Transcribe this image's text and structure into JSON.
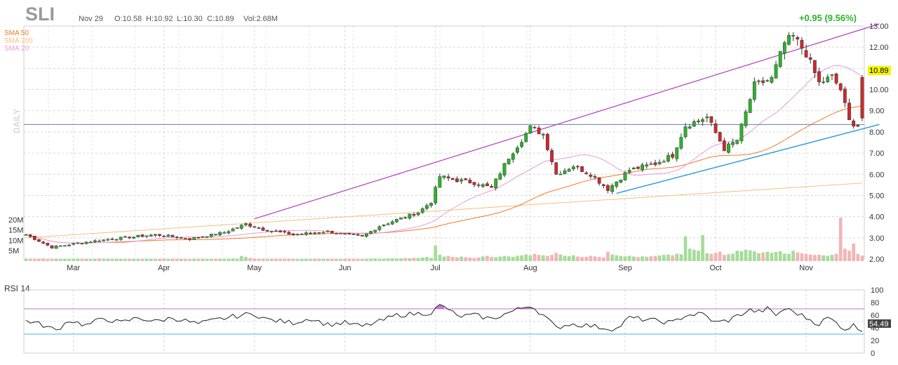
{
  "header": {
    "ticker": "SLI",
    "date": "Nov 29",
    "open": "O:10.58",
    "high": "H:10.92",
    "low": "L:10.30",
    "close": "C:10.89",
    "volume": "Vol:2.68M",
    "change": "+0.95 (9.56%)",
    "timeframe": "DAILY"
  },
  "legend": [
    {
      "label": "SMA 50",
      "color": "#f07a2a"
    },
    {
      "label": "SMA 200",
      "color": "#f5c07a"
    },
    {
      "label": "SMA 20",
      "color": "#e89ad6"
    }
  ],
  "colors": {
    "up": "#2bb32b",
    "down": "#d0282b",
    "vol_up": "#a6dc9a",
    "vol_down": "#f3b5b5",
    "price_tag": "#f5f500",
    "change": "#2bb32b",
    "channel": "#b03bbf",
    "support": "#2c9bd8",
    "horizontal": "#6a7bb8",
    "rsi_line": "#222222",
    "rsi_fill": "#c65ed3",
    "rsi_upper": "#c070c8",
    "rsi_lower": "#55b0d8"
  },
  "chart_data": [
    {
      "type": "candlestick",
      "title": "SLI",
      "x_axis_labels": [
        "Mar",
        "Apr",
        "May",
        "Jun",
        "Jul",
        "Aug",
        "Sep",
        "Oct",
        "Nov"
      ],
      "x_axis_label_index": [
        11,
        32,
        53,
        74,
        95,
        117,
        139,
        160,
        181
      ],
      "y_ticks": [
        2.0,
        3.0,
        4.0,
        5.0,
        6.0,
        7.0,
        8.0,
        9.0,
        10.0,
        11.0,
        12.0,
        13.0
      ],
      "y_tick_labels": [
        "2.00",
        "3.00",
        "4.00",
        "5.00",
        "6.00",
        "7.00",
        "8.00",
        "9.00",
        "10.00",
        "11.00",
        "12.00",
        "13.00"
      ],
      "ylim": [
        2.0,
        13.0
      ],
      "last_price_label": "10.89",
      "last_price": 10.89,
      "volume_ticks": [
        "20M",
        "15M",
        "10M",
        "5M"
      ],
      "volume_tick_values": [
        20,
        15,
        10,
        5
      ],
      "volume_max": 21,
      "price_anchors": [
        [
          0,
          3.15
        ],
        [
          6,
          2.55
        ],
        [
          12,
          2.75
        ],
        [
          20,
          2.95
        ],
        [
          30,
          3.15
        ],
        [
          38,
          2.95
        ],
        [
          46,
          3.25
        ],
        [
          51,
          3.65
        ],
        [
          55,
          3.4
        ],
        [
          62,
          3.15
        ],
        [
          70,
          3.3
        ],
        [
          74,
          3.15
        ],
        [
          78,
          3.05
        ],
        [
          82,
          3.55
        ],
        [
          86,
          3.85
        ],
        [
          91,
          4.2
        ],
        [
          94,
          4.7
        ],
        [
          96,
          5.9
        ],
        [
          99,
          5.75
        ],
        [
          104,
          5.6
        ],
        [
          108,
          5.35
        ],
        [
          112,
          6.8
        ],
        [
          117,
          8.2
        ],
        [
          120,
          7.9
        ],
        [
          123,
          6.0
        ],
        [
          127,
          6.4
        ],
        [
          131,
          6.0
        ],
        [
          135,
          5.3
        ],
        [
          140,
          6.2
        ],
        [
          146,
          6.5
        ],
        [
          150,
          6.9
        ],
        [
          153,
          8.3
        ],
        [
          158,
          8.7
        ],
        [
          162,
          7.2
        ],
        [
          165,
          7.6
        ],
        [
          169,
          10.2
        ],
        [
          173,
          10.5
        ],
        [
          176,
          12.2
        ],
        [
          178,
          12.5
        ],
        [
          181,
          11.7
        ],
        [
          184,
          10.3
        ],
        [
          187,
          10.6
        ],
        [
          189,
          10.0
        ],
        [
          191,
          8.5
        ],
        [
          193,
          8.3
        ],
        [
          195,
          9.0
        ],
        [
          197,
          10.8
        ],
        [
          198,
          10.89
        ]
      ],
      "volume_series": [
        1.2,
        1.0,
        0.9,
        1.1,
        1.3,
        0.8,
        1.0,
        1.2,
        0.9,
        1.1,
        1.0,
        0.9,
        1.2,
        1.0,
        1.1,
        0.8,
        1.0,
        1.3,
        0.9,
        1.1,
        1.0,
        1.2,
        0.9,
        0.8,
        1.0,
        1.1,
        1.0,
        0.9,
        1.2,
        1.0,
        0.8,
        1.1,
        1.0,
        0.9,
        1.2,
        1.1,
        1.0,
        0.9,
        0.8,
        1.1,
        1.0,
        1.2,
        0.9,
        1.0,
        1.1,
        1.0,
        0.9,
        1.2,
        1.3,
        1.1,
        2.5,
        2.0,
        1.5,
        1.2,
        1.0,
        1.1,
        0.9,
        1.0,
        1.2,
        1.0,
        0.9,
        1.1,
        1.0,
        0.8,
        1.0,
        1.1,
        0.9,
        1.0,
        1.2,
        1.0,
        0.9,
        1.1,
        1.0,
        0.8,
        1.1,
        1.2,
        1.0,
        1.1,
        0.9,
        1.0,
        1.2,
        1.3,
        1.1,
        1.2,
        1.3,
        1.4,
        1.2,
        1.3,
        1.5,
        1.4,
        1.6,
        1.5,
        1.8,
        2.0,
        1.6,
        7.5,
        3.0,
        2.2,
        2.5,
        2.0,
        1.8,
        2.2,
        1.9,
        1.7,
        1.5,
        1.8,
        2.3,
        2.6,
        2.0,
        1.9,
        2.2,
        2.5,
        2.3,
        2.1,
        2.6,
        2.8,
        3.2,
        2.8,
        3.5,
        3.0,
        2.8,
        2.5,
        3.0,
        4.0,
        3.2,
        2.6,
        2.4,
        2.8,
        2.2,
        2.0,
        2.1,
        2.6,
        2.3,
        2.0,
        1.8,
        4.5,
        3.2,
        2.8,
        2.5,
        2.3,
        2.6,
        2.2,
        2.0,
        2.3,
        2.1,
        2.4,
        2.5,
        2.7,
        3.0,
        3.2,
        2.8,
        3.5,
        3.3,
        12.0,
        6.0,
        5.5,
        5.0,
        12.5,
        3.8,
        3.5,
        4.0,
        4.5,
        3.0,
        3.3,
        3.6,
        5.0,
        4.8,
        5.5,
        5.2,
        4.7,
        3.8,
        4.2,
        4.5,
        4.0,
        4.4,
        4.8,
        3.6,
        3.5,
        5.0,
        4.2,
        3.8,
        3.5,
        3.2,
        3.0,
        3.1,
        2.8,
        2.6,
        3.0,
        3.5,
        21.0,
        6.0,
        5.0,
        8.5,
        3.5,
        2.68
      ],
      "channel_line": [
        [
          53,
          3.9
        ],
        [
          198,
          13.0
        ]
      ],
      "support_line": [
        [
          137,
          5.1
        ],
        [
          198,
          8.35
        ]
      ],
      "horizontal_line": 8.35
    },
    {
      "type": "line",
      "title": "RSI 14",
      "y_ticks": [
        0,
        20,
        40,
        60,
        80,
        100
      ],
      "y_tick_labels": [
        "0",
        "20",
        "40",
        "60",
        "80",
        "100"
      ],
      "ylim": [
        0,
        100
      ],
      "overbought": 70,
      "oversold": 30,
      "last_value": 54.49,
      "last_value_label": "54.49",
      "rsi_anchors": [
        [
          0,
          52
        ],
        [
          4,
          44
        ],
        [
          7,
          36
        ],
        [
          10,
          52
        ],
        [
          14,
          44
        ],
        [
          18,
          55
        ],
        [
          22,
          48
        ],
        [
          26,
          56
        ],
        [
          30,
          50
        ],
        [
          34,
          56
        ],
        [
          40,
          46
        ],
        [
          45,
          54
        ],
        [
          50,
          60
        ],
        [
          53,
          62
        ],
        [
          56,
          53
        ],
        [
          62,
          48
        ],
        [
          66,
          55
        ],
        [
          70,
          45
        ],
        [
          74,
          48
        ],
        [
          78,
          42
        ],
        [
          82,
          50
        ],
        [
          86,
          60
        ],
        [
          90,
          62
        ],
        [
          94,
          64
        ],
        [
          96,
          75
        ],
        [
          98,
          70
        ],
        [
          100,
          58
        ],
        [
          104,
          60
        ],
        [
          108,
          54
        ],
        [
          112,
          64
        ],
        [
          117,
          76
        ],
        [
          120,
          60
        ],
        [
          123,
          40
        ],
        [
          126,
          46
        ],
        [
          130,
          44
        ],
        [
          134,
          40
        ],
        [
          137,
          38
        ],
        [
          140,
          56
        ],
        [
          145,
          52
        ],
        [
          150,
          48
        ],
        [
          153,
          60
        ],
        [
          157,
          62
        ],
        [
          160,
          48
        ],
        [
          163,
          52
        ],
        [
          166,
          62
        ],
        [
          168,
          68
        ],
        [
          170,
          65
        ],
        [
          172,
          70
        ],
        [
          174,
          60
        ],
        [
          176,
          70
        ],
        [
          178,
          66
        ],
        [
          181,
          56
        ],
        [
          184,
          46
        ],
        [
          186,
          56
        ],
        [
          188,
          48
        ],
        [
          190,
          38
        ],
        [
          192,
          44
        ],
        [
          194,
          34
        ],
        [
          196,
          46
        ],
        [
          198,
          54.49
        ]
      ]
    }
  ]
}
